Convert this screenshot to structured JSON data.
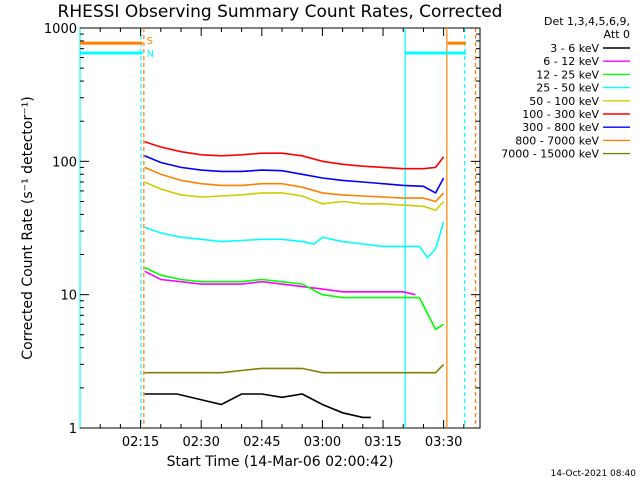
{
  "chart_data": {
    "type": "line",
    "title": "RHESSI Observing Summary Count Rates, Corrected",
    "xlabel": "Start Time (14-Mar-06 02:00:42)",
    "ylabel": "Corrected Count Rate (s⁻¹ detector⁻¹)",
    "yscale": "log",
    "ylim": [
      1,
      1000
    ],
    "xlim_minutes": [
      0,
      99
    ],
    "x_ticks": [
      {
        "t": 15,
        "label": "02:15"
      },
      {
        "t": 30,
        "label": "02:30"
      },
      {
        "t": 45,
        "label": "02:45"
      },
      {
        "t": 60,
        "label": "03:00"
      },
      {
        "t": 75,
        "label": "03:15"
      },
      {
        "t": 90,
        "label": "03:30"
      }
    ],
    "y_ticks": [
      {
        "v": 1,
        "label": "1"
      },
      {
        "v": 10,
        "label": "10"
      },
      {
        "v": 100,
        "label": "100"
      },
      {
        "v": 1000,
        "label": "1000"
      }
    ],
    "legend_header": [
      "Det 1,3,4,5,6,9,",
      "Att 0"
    ],
    "legend_position": "right",
    "series": [
      {
        "name": "3 - 6 keV",
        "color": "#000000",
        "t": [
          16,
          24,
          35,
          40,
          45,
          50,
          55,
          60,
          65,
          70,
          72
        ],
        "y": [
          1.8,
          1.8,
          1.5,
          1.8,
          1.8,
          1.7,
          1.8,
          1.5,
          1.3,
          1.2,
          1.2
        ]
      },
      {
        "name": "6 - 12 keV",
        "color": "#ff00ff",
        "t": [
          16,
          20,
          25,
          30,
          35,
          40,
          45,
          50,
          55,
          60,
          65,
          70,
          75,
          80,
          83
        ],
        "y": [
          15,
          13,
          12.5,
          12,
          12,
          12,
          12.5,
          12,
          11.5,
          11,
          10.5,
          10.5,
          10.5,
          10.5,
          10
        ]
      },
      {
        "name": "12 - 25 keV",
        "color": "#00ff00",
        "t": [
          16,
          20,
          25,
          30,
          35,
          40,
          45,
          50,
          55,
          60,
          65,
          70,
          75,
          80,
          84,
          88,
          90
        ],
        "y": [
          16,
          14,
          13,
          12.5,
          12.5,
          12.5,
          13,
          12.5,
          12,
          10,
          9.5,
          9.5,
          9.5,
          9.5,
          9.5,
          5.5,
          6
        ]
      },
      {
        "name": "25 - 50 keV",
        "color": "#00ffff",
        "t": [
          16,
          20,
          25,
          30,
          35,
          40,
          45,
          50,
          55,
          58,
          60,
          65,
          70,
          75,
          80,
          84,
          86,
          88,
          90
        ],
        "y": [
          32,
          29,
          27,
          26,
          25,
          25.5,
          26,
          26,
          25,
          24,
          27,
          25,
          24,
          23,
          23,
          23,
          19,
          22,
          35
        ]
      },
      {
        "name": "50 - 100 keV",
        "color": "#cccc00",
        "t": [
          16,
          20,
          25,
          30,
          35,
          40,
          45,
          50,
          55,
          60,
          65,
          70,
          75,
          80,
          85,
          88,
          90
        ],
        "y": [
          70,
          62,
          56,
          54,
          55,
          56,
          58,
          58,
          55,
          48,
          50,
          48,
          48,
          47,
          46,
          43,
          50
        ]
      },
      {
        "name": "100 - 300 keV",
        "color": "#ff0000",
        "t": [
          16,
          20,
          25,
          30,
          35,
          40,
          45,
          50,
          55,
          60,
          65,
          70,
          75,
          80,
          85,
          88,
          90
        ],
        "y": [
          140,
          128,
          118,
          112,
          110,
          112,
          115,
          115,
          110,
          100,
          95,
          92,
          90,
          88,
          88,
          90,
          108
        ]
      },
      {
        "name": "300 - 800 keV",
        "color": "#0000ff",
        "t": [
          16,
          20,
          25,
          30,
          35,
          40,
          45,
          50,
          55,
          60,
          65,
          70,
          75,
          80,
          85,
          88,
          90
        ],
        "y": [
          110,
          98,
          90,
          86,
          84,
          84,
          86,
          85,
          80,
          75,
          72,
          70,
          68,
          66,
          65,
          58,
          75
        ]
      },
      {
        "name": "800 - 7000 keV",
        "color": "#ff8000",
        "t": [
          16,
          20,
          25,
          30,
          35,
          40,
          45,
          50,
          55,
          60,
          65,
          70,
          75,
          80,
          85,
          88,
          90
        ],
        "y": [
          90,
          80,
          72,
          68,
          66,
          66,
          68,
          68,
          64,
          58,
          56,
          55,
          54,
          53,
          53,
          50,
          58
        ]
      },
      {
        "name": "7000 - 15000 keV",
        "color": "#808000",
        "t": [
          16,
          20,
          25,
          30,
          35,
          40,
          45,
          50,
          55,
          60,
          65,
          70,
          75,
          80,
          85,
          88,
          90
        ],
        "y": [
          2.6,
          2.6,
          2.6,
          2.6,
          2.6,
          2.7,
          2.8,
          2.8,
          2.8,
          2.6,
          2.6,
          2.6,
          2.6,
          2.6,
          2.6,
          2.6,
          3.0
        ]
      }
    ],
    "vertical_markers": [
      {
        "t": 0,
        "color": "#00ffff",
        "style": "solid"
      },
      {
        "t": 15.1,
        "color": "#00ffff",
        "style": "dashed"
      },
      {
        "t": 15.8,
        "color": "#ff8000",
        "style": "dashed"
      },
      {
        "t": 80.5,
        "color": "#00ffff",
        "style": "solid"
      },
      {
        "t": 90.8,
        "color": "#ff8000",
        "style": "solid"
      },
      {
        "t": 95.2,
        "color": "#00ffff",
        "style": "dashed"
      },
      {
        "t": 97.9,
        "color": "#ff8000",
        "style": "dashed"
      }
    ],
    "saa_bars": [
      {
        "t0": 0,
        "t1": 15.5,
        "value": 770,
        "color": "#ff8000"
      },
      {
        "t0": 0,
        "t1": 15.5,
        "value": 650,
        "color": "#00ffff"
      },
      {
        "t0": 80.5,
        "t1": 95.5,
        "value": 650,
        "color": "#00ffff"
      },
      {
        "t0": 91,
        "t1": 95.5,
        "value": 770,
        "color": "#ff8000"
      }
    ],
    "bar_labels": [
      {
        "text": "S",
        "t": 16.5,
        "value": 800,
        "color": "#ff8000"
      },
      {
        "text": "N",
        "t": 16.5,
        "value": 640,
        "color": "#00ffff"
      }
    ],
    "timestamp": "14-Oct-2021 08:40"
  }
}
